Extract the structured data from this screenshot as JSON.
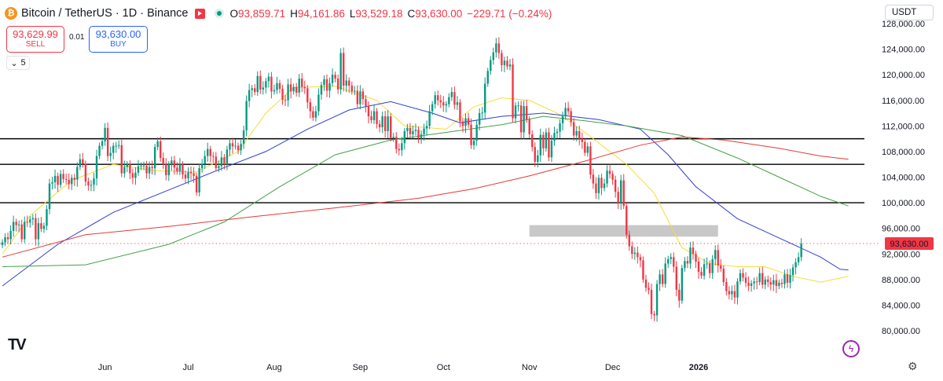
{
  "header": {
    "icon_glyph": "₿",
    "symbol": "Bitcoin / TetherUS · 1D · Binance",
    "open_label": "O",
    "open": "93,859.71",
    "high_label": "H",
    "high": "94,161.86",
    "low_label": "L",
    "low": "93,529.18",
    "close_label": "C",
    "close": "93,630.00",
    "change": "−229.71 (−0.24%)"
  },
  "trade": {
    "sell_price": "93,629.99",
    "sell_label": "SELL",
    "spread": "0.01",
    "buy_price": "93,630.00",
    "buy_label": "BUY"
  },
  "indicators_collapse": {
    "count": "5"
  },
  "currency": {
    "label": "USDT",
    "chevron": "⌄"
  },
  "bolt_glyph": "ϟ",
  "gear_glyph": "⚙",
  "colors": {
    "up": "#089981",
    "down": "#f23645",
    "ma_fast": "#f5dc3a",
    "ma_mid": "#2f3fd0",
    "ma_slow": "#43a047",
    "ma_long": "#e53935"
  },
  "chart_data": {
    "type": "candlestick",
    "y_ticks": [
      "80,000.00",
      "84,000.00",
      "88,000.00",
      "92,000.00",
      "96,000.00",
      "100,000.00",
      "104,000.00",
      "108,000.00",
      "112,000.00",
      "116,000.00",
      "120,000.00",
      "124,000.00",
      "128,000.00"
    ],
    "ylim": [
      78000,
      128000
    ],
    "x_labels": [
      {
        "label": "Jun",
        "date": "2025-06-01"
      },
      {
        "label": "Jul",
        "date": "2025-07-01"
      },
      {
        "label": "Aug",
        "date": "2025-08-01"
      },
      {
        "label": "Sep",
        "date": "2025-09-01"
      },
      {
        "label": "Oct",
        "date": "2025-10-01"
      },
      {
        "label": "Nov",
        "date": "2025-11-01"
      },
      {
        "label": "Dec",
        "date": "2025-12-01"
      },
      {
        "label": "2026",
        "date": "2026-01-01"
      }
    ],
    "x_start": "2025-04-25",
    "last_price_label": "93,630.00",
    "last_price": 93630,
    "horizontal_lines": [
      110000,
      106000,
      100000
    ],
    "zone": {
      "low": 94700,
      "high": 96500,
      "from": "2025-11-01",
      "to": "2026-01-08"
    },
    "closes": [
      93800,
      94600,
      94300,
      95600,
      97000,
      96500,
      96600,
      94300,
      97000,
      96900,
      97400,
      97600,
      94300,
      96800,
      95900,
      96400,
      99000,
      103000,
      103200,
      104200,
      102800,
      104500,
      103700,
      103600,
      102900,
      103900,
      103600,
      105600,
      106800,
      106100,
      103300,
      102700,
      102800,
      103800,
      107300,
      108900,
      109600,
      111700,
      107300,
      107800,
      108900,
      108900,
      109000,
      104600,
      105600,
      106000,
      104600,
      103900,
      104700,
      105700,
      105800,
      105800,
      104600,
      105600,
      105400,
      108700,
      109600,
      107000,
      106000,
      104300,
      106000,
      106600,
      105500,
      104900,
      106000,
      104400,
      103800,
      104800,
      104600,
      104200,
      101600,
      105400,
      106100,
      107300,
      108400,
      107300,
      107200,
      105400,
      105700,
      107100,
      106000,
      108300,
      109300,
      108800,
      108900,
      108200,
      109200,
      111300,
      115900,
      117600,
      117900,
      117300,
      119800,
      117700,
      118000,
      119000,
      119700,
      117400,
      117600,
      118700,
      117800,
      116100,
      116000,
      118500,
      117400,
      118100,
      117200,
      119400,
      118100,
      117900,
      115700,
      114300,
      113300,
      114300,
      116900,
      118400,
      119300,
      117500,
      118700,
      120000,
      119400,
      117700,
      123400,
      118300,
      119100,
      118300,
      117400,
      117500,
      115400,
      117400,
      116200,
      115100,
      113500,
      112900,
      114300,
      112300,
      111800,
      113500,
      111200,
      113500,
      110100,
      110300,
      108400,
      108200,
      109300,
      111200,
      111700,
      110700,
      111200,
      111400,
      110100,
      110700,
      111600,
      112000,
      114300,
      115400,
      116800,
      116000,
      115700,
      115200,
      115400,
      116500,
      117300,
      115300,
      115700,
      112700,
      112000,
      113200,
      112200,
      109000,
      109700,
      112200,
      114000,
      114100,
      118600,
      120600,
      122300,
      123500,
      124900,
      123400,
      121500,
      122200,
      121300,
      121600,
      113200,
      115200,
      115200,
      111000,
      115100,
      113000,
      110700,
      108700,
      106400,
      107400,
      110600,
      108500,
      111000,
      107100,
      109700,
      110900,
      111100,
      112400,
      113500,
      114800,
      114300,
      112600,
      110500,
      111200,
      110000,
      109500,
      107800,
      108800,
      104400,
      103000,
      101500,
      103900,
      102300,
      103000,
      105000,
      104500,
      103600,
      101700,
      100000,
      103500,
      99500,
      95000,
      93200,
      92000,
      92200,
      91500,
      91000,
      88000,
      86700,
      86400,
      82600,
      82400,
      87300,
      88800,
      87300,
      90500,
      91200,
      91500,
      90000,
      86400,
      84700,
      89800,
      90900,
      90500,
      93000,
      92000,
      90800,
      89200,
      88600,
      90400,
      90500,
      89000,
      91200,
      92600,
      90200,
      89700,
      87600,
      86200,
      85700,
      86200,
      85200,
      87700,
      89000,
      88300,
      87500,
      87000,
      87400,
      87700,
      87600,
      89000,
      87200,
      88000,
      87600,
      87200,
      87900,
      87000,
      87500,
      87300,
      88800,
      87500,
      88700,
      89900,
      90700,
      91500,
      93600
    ],
    "moving_averages": [
      {
        "name": "MA fast",
        "color": "#f5dc3a",
        "points": [
          [
            0,
            92000
          ],
          [
            10,
            98000
          ],
          [
            25,
            103500
          ],
          [
            40,
            106000
          ],
          [
            55,
            105000
          ],
          [
            70,
            104800
          ],
          [
            85,
            108000
          ],
          [
            95,
            114000
          ],
          [
            105,
            118000
          ],
          [
            120,
            118200
          ],
          [
            135,
            116000
          ],
          [
            145,
            112000
          ],
          [
            160,
            111500
          ],
          [
            170,
            115000
          ],
          [
            180,
            116400
          ],
          [
            190,
            116000
          ],
          [
            200,
            114000
          ],
          [
            210,
            111000
          ],
          [
            225,
            106000
          ],
          [
            235,
            101500
          ],
          [
            245,
            93000
          ],
          [
            255,
            90500
          ],
          [
            265,
            90000
          ],
          [
            275,
            90000
          ],
          [
            285,
            88500
          ],
          [
            295,
            87600
          ],
          [
            305,
            88500
          ]
        ]
      },
      {
        "name": "MA mid",
        "color": "#2f3fd0",
        "points": [
          [
            0,
            87000
          ],
          [
            20,
            93500
          ],
          [
            40,
            98500
          ],
          [
            60,
            102000
          ],
          [
            80,
            105500
          ],
          [
            95,
            108000
          ],
          [
            110,
            111500
          ],
          [
            125,
            114500
          ],
          [
            140,
            115800
          ],
          [
            155,
            114000
          ],
          [
            165,
            112500
          ],
          [
            180,
            113500
          ],
          [
            195,
            114000
          ],
          [
            215,
            113000
          ],
          [
            230,
            111500
          ],
          [
            240,
            107500
          ],
          [
            250,
            102500
          ],
          [
            265,
            97500
          ],
          [
            280,
            94500
          ],
          [
            295,
            91500
          ],
          [
            302,
            89600
          ],
          [
            305,
            89500
          ]
        ]
      },
      {
        "name": "MA slow",
        "color": "#43a047",
        "points": [
          [
            0,
            90000
          ],
          [
            30,
            90300
          ],
          [
            60,
            93500
          ],
          [
            80,
            97000
          ],
          [
            100,
            102500
          ],
          [
            120,
            107500
          ],
          [
            140,
            109800
          ],
          [
            160,
            111000
          ],
          [
            180,
            112200
          ],
          [
            195,
            113500
          ],
          [
            210,
            112800
          ],
          [
            225,
            112000
          ],
          [
            245,
            110500
          ],
          [
            265,
            107000
          ],
          [
            280,
            104000
          ],
          [
            295,
            101000
          ],
          [
            305,
            99500
          ]
        ]
      },
      {
        "name": "MA long",
        "color": "#e53935",
        "points": [
          [
            0,
            91500
          ],
          [
            30,
            95000
          ],
          [
            60,
            96300
          ],
          [
            90,
            97800
          ],
          [
            120,
            99200
          ],
          [
            150,
            100700
          ],
          [
            170,
            102200
          ],
          [
            190,
            104200
          ],
          [
            210,
            106500
          ],
          [
            230,
            109000
          ],
          [
            245,
            110300
          ],
          [
            260,
            109800
          ],
          [
            280,
            108500
          ],
          [
            295,
            107300
          ],
          [
            305,
            106800
          ]
        ]
      }
    ]
  }
}
